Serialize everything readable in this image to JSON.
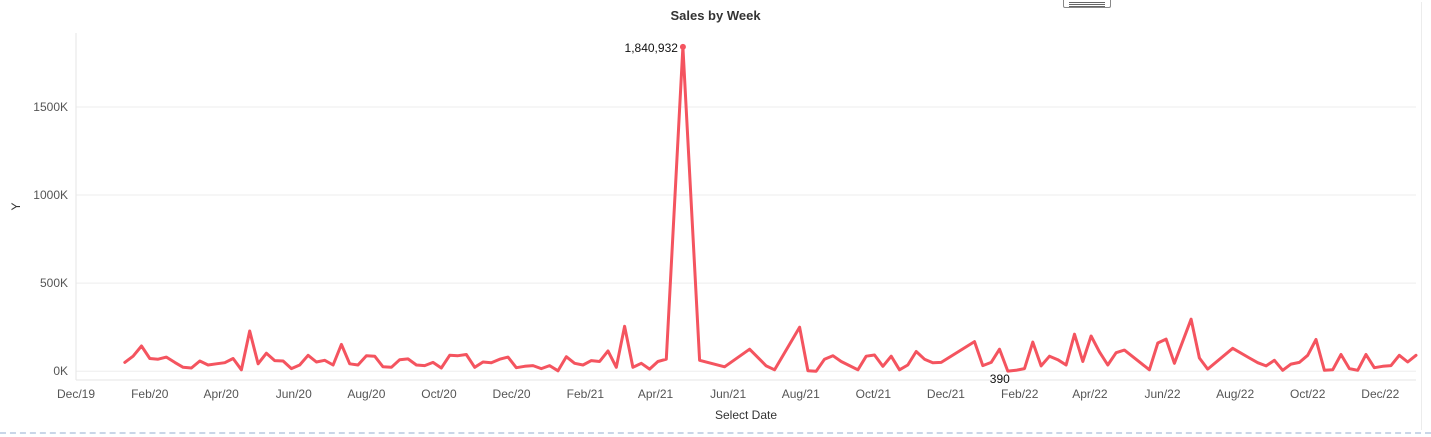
{
  "chart_data": {
    "type": "line",
    "title": "Sales by Week",
    "xlabel": "Select Date",
    "ylabel": "Y",
    "x_range": [
      "2019-12-01",
      "2022-12-31"
    ],
    "ylim": [
      -50000,
      1920000
    ],
    "yticks": [
      0,
      500000,
      1000000,
      1500000
    ],
    "ytick_labels": [
      "0K",
      "500K",
      "1000K",
      "1500K"
    ],
    "xticks": [
      "2019-12-01",
      "2020-02-01",
      "2020-04-01",
      "2020-06-01",
      "2020-08-01",
      "2020-10-01",
      "2020-12-01",
      "2021-02-01",
      "2021-04-01",
      "2021-06-01",
      "2021-08-01",
      "2021-10-01",
      "2021-12-01",
      "2022-02-01",
      "2022-04-01",
      "2022-06-01",
      "2022-08-01",
      "2022-10-01",
      "2022-12-01"
    ],
    "xtick_labels": [
      "Dec/19",
      "Feb/20",
      "Apr/20",
      "Jun/20",
      "Aug/20",
      "Oct/20",
      "Dec/20",
      "Feb/21",
      "Apr/21",
      "Jun/21",
      "Aug/21",
      "Oct/21",
      "Dec/21",
      "Feb/22",
      "Apr/22",
      "Jun/22",
      "Aug/22",
      "Oct/22",
      "Dec/22"
    ],
    "grid": true,
    "line_color": "#f4545f",
    "series": [
      {
        "points": [
          [
            "2020-01-11",
            50000
          ],
          [
            "2020-01-18",
            85000
          ],
          [
            "2020-01-25",
            143000
          ],
          [
            "2020-02-01",
            72000
          ],
          [
            "2020-02-08",
            68000
          ],
          [
            "2020-02-15",
            80000
          ],
          [
            "2020-02-22",
            50000
          ],
          [
            "2020-02-29",
            22000
          ],
          [
            "2020-03-07",
            18000
          ],
          [
            "2020-03-14",
            58000
          ],
          [
            "2020-03-21",
            35000
          ],
          [
            "2020-03-28",
            42000
          ],
          [
            "2020-04-04",
            48000
          ],
          [
            "2020-04-11",
            72000
          ],
          [
            "2020-04-18",
            8000
          ],
          [
            "2020-04-25",
            228000
          ],
          [
            "2020-05-02",
            42000
          ],
          [
            "2020-05-09",
            102000
          ],
          [
            "2020-05-16",
            60000
          ],
          [
            "2020-05-23",
            58000
          ],
          [
            "2020-05-30",
            15000
          ],
          [
            "2020-06-06",
            35000
          ],
          [
            "2020-06-13",
            90000
          ],
          [
            "2020-06-20",
            52000
          ],
          [
            "2020-06-27",
            62000
          ],
          [
            "2020-07-04",
            35000
          ],
          [
            "2020-07-11",
            152000
          ],
          [
            "2020-07-18",
            42000
          ],
          [
            "2020-07-25",
            35000
          ],
          [
            "2020-08-01",
            88000
          ],
          [
            "2020-08-08",
            85000
          ],
          [
            "2020-08-15",
            25000
          ],
          [
            "2020-08-22",
            22000
          ],
          [
            "2020-08-29",
            65000
          ],
          [
            "2020-09-05",
            70000
          ],
          [
            "2020-09-12",
            35000
          ],
          [
            "2020-09-19",
            32000
          ],
          [
            "2020-09-26",
            50000
          ],
          [
            "2020-10-03",
            18000
          ],
          [
            "2020-10-10",
            90000
          ],
          [
            "2020-10-17",
            88000
          ],
          [
            "2020-10-24",
            95000
          ],
          [
            "2020-10-31",
            22000
          ],
          [
            "2020-11-07",
            52000
          ],
          [
            "2020-11-14",
            48000
          ],
          [
            "2020-11-21",
            68000
          ],
          [
            "2020-11-28",
            80000
          ],
          [
            "2020-12-05",
            20000
          ],
          [
            "2020-12-12",
            28000
          ],
          [
            "2020-12-19",
            32000
          ],
          [
            "2020-12-26",
            15000
          ],
          [
            "2021-01-02",
            32000
          ],
          [
            "2021-01-09",
            2000
          ],
          [
            "2021-01-16",
            82000
          ],
          [
            "2021-01-23",
            45000
          ],
          [
            "2021-01-30",
            35000
          ],
          [
            "2021-02-06",
            60000
          ],
          [
            "2021-02-13",
            55000
          ],
          [
            "2021-02-20",
            115000
          ],
          [
            "2021-02-27",
            22000
          ],
          [
            "2021-03-06",
            255000
          ],
          [
            "2021-03-13",
            22000
          ],
          [
            "2021-03-20",
            45000
          ],
          [
            "2021-03-27",
            12000
          ],
          [
            "2021-04-03",
            55000
          ],
          [
            "2021-04-10",
            68000
          ],
          [
            "2021-04-24",
            1840932
          ],
          [
            "2021-05-08",
            62000
          ],
          [
            "2021-05-29",
            25000
          ],
          [
            "2021-06-19",
            125000
          ],
          [
            "2021-07-03",
            30000
          ],
          [
            "2021-07-10",
            8000
          ],
          [
            "2021-07-31",
            250000
          ],
          [
            "2021-08-07",
            3000
          ],
          [
            "2021-08-14",
            0
          ],
          [
            "2021-08-21",
            68000
          ],
          [
            "2021-08-28",
            88000
          ],
          [
            "2021-09-04",
            55000
          ],
          [
            "2021-09-11",
            32000
          ],
          [
            "2021-09-18",
            8000
          ],
          [
            "2021-09-25",
            85000
          ],
          [
            "2021-10-02",
            92000
          ],
          [
            "2021-10-09",
            28000
          ],
          [
            "2021-10-16",
            85000
          ],
          [
            "2021-10-23",
            8000
          ],
          [
            "2021-10-30",
            35000
          ],
          [
            "2021-11-06",
            112000
          ],
          [
            "2021-11-13",
            68000
          ],
          [
            "2021-11-20",
            48000
          ],
          [
            "2021-11-27",
            50000
          ],
          [
            "2021-12-25",
            168000
          ],
          [
            "2022-01-01",
            32000
          ],
          [
            "2022-01-08",
            50000
          ],
          [
            "2022-01-15",
            125000
          ],
          [
            "2022-01-22",
            390
          ],
          [
            "2022-01-29",
            5000
          ],
          [
            "2022-02-05",
            15000
          ],
          [
            "2022-02-12",
            165000
          ],
          [
            "2022-02-19",
            30000
          ],
          [
            "2022-02-26",
            85000
          ],
          [
            "2022-03-05",
            65000
          ],
          [
            "2022-03-12",
            35000
          ],
          [
            "2022-03-19",
            210000
          ],
          [
            "2022-03-26",
            55000
          ],
          [
            "2022-04-02",
            200000
          ],
          [
            "2022-04-09",
            110000
          ],
          [
            "2022-04-16",
            35000
          ],
          [
            "2022-04-23",
            105000
          ],
          [
            "2022-04-30",
            120000
          ],
          [
            "2022-05-21",
            8000
          ],
          [
            "2022-05-28",
            160000
          ],
          [
            "2022-06-04",
            182000
          ],
          [
            "2022-06-11",
            45000
          ],
          [
            "2022-06-25",
            295000
          ],
          [
            "2022-07-02",
            75000
          ],
          [
            "2022-07-09",
            12000
          ],
          [
            "2022-07-30",
            130000
          ],
          [
            "2022-08-13",
            75000
          ],
          [
            "2022-08-20",
            48000
          ],
          [
            "2022-08-27",
            30000
          ],
          [
            "2022-09-03",
            62000
          ],
          [
            "2022-09-10",
            5000
          ],
          [
            "2022-09-17",
            40000
          ],
          [
            "2022-09-24",
            50000
          ],
          [
            "2022-10-01",
            90000
          ],
          [
            "2022-10-08",
            180000
          ],
          [
            "2022-10-15",
            5000
          ],
          [
            "2022-10-22",
            8000
          ],
          [
            "2022-10-29",
            95000
          ],
          [
            "2022-11-05",
            15000
          ],
          [
            "2022-11-12",
            5000
          ],
          [
            "2022-11-19",
            95000
          ],
          [
            "2022-11-26",
            20000
          ],
          [
            "2022-12-03",
            28000
          ],
          [
            "2022-12-10",
            32000
          ],
          [
            "2022-12-17",
            90000
          ],
          [
            "2022-12-24",
            52000
          ],
          [
            "2022-12-31",
            90000
          ]
        ]
      }
    ],
    "annotations": [
      {
        "x": "2021-04-24",
        "y": 1840932,
        "text": "1,840,932",
        "marker": true
      },
      {
        "x": "2022-01-22",
        "y": 390,
        "text": "390",
        "marker": false
      }
    ]
  }
}
